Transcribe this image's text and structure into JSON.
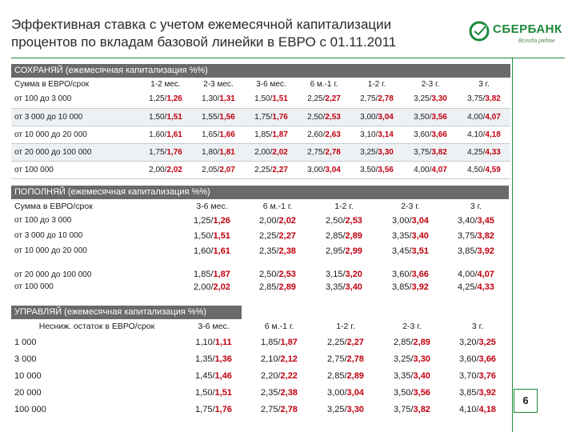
{
  "title": {
    "line1": "Эффективная ставка с учетом ежемесячной капитализации",
    "line2": "процентов по вкладам базовой линейки в ЕВРО с 01.11.2011"
  },
  "logo": {
    "name": "СБЕРБАНК",
    "slogan": "Всегда рядом",
    "accent_color": "#1e8a3c"
  },
  "colors": {
    "section_header_bg": "#6a6a6a",
    "highlight_red": "#c0000f",
    "brand_green": "#1e8a3c"
  },
  "sections": [
    {
      "header": "СОХРАНЯЙ (ежемесячная капитализация %%)",
      "columns": [
        "Сумма в ЕВРО/срок",
        "1-2 мес.",
        "2-3 мес.",
        "3-6 мес.",
        "6 м.-1 г.",
        "1-2 г.",
        "2-3 г.",
        "3 г."
      ],
      "rows": [
        {
          "label": "от 100 до 3 000",
          "cells": [
            [
              "1,25/",
              "1,26"
            ],
            [
              "1,30/",
              "1,31"
            ],
            [
              "1,50/",
              "1,51"
            ],
            [
              "2,25/",
              "2,27"
            ],
            [
              "2,75/",
              "2,78"
            ],
            [
              "3,25/",
              "3,30"
            ],
            [
              "3,75/",
              "3,82"
            ]
          ]
        },
        {
          "label": "от 3 000 до 10 000",
          "cells": [
            [
              "1,50/",
              "1,51"
            ],
            [
              "1,55/",
              "1,56"
            ],
            [
              "1,75/",
              "1,76"
            ],
            [
              "2,50/",
              "2,53"
            ],
            [
              "3,00/",
              "3,04"
            ],
            [
              "3,50/",
              "3,56"
            ],
            [
              "4,00/",
              "4,07"
            ]
          ]
        },
        {
          "label": "от 10 000 до 20 000",
          "cells": [
            [
              "1,60/",
              "1,61"
            ],
            [
              "1,65/",
              "1,66"
            ],
            [
              "1,85/",
              "1,87"
            ],
            [
              "2,60/",
              "2,63"
            ],
            [
              "3,10/",
              "3,14"
            ],
            [
              "3,60/",
              "3,66"
            ],
            [
              "4,10/",
              "4,18"
            ]
          ]
        },
        {
          "label": "от 20 000 до 100 000",
          "cells": [
            [
              "1,75/",
              "1,76"
            ],
            [
              "1,80/",
              "1,81"
            ],
            [
              "2,00/",
              "2,02"
            ],
            [
              "2,75/",
              "2,78"
            ],
            [
              "3,25/",
              "3,30"
            ],
            [
              "3,75/",
              "3,82"
            ],
            [
              "4,25/",
              "4,33"
            ]
          ]
        },
        {
          "label": "от 100 000",
          "cells": [
            [
              "2,00/",
              "2,02"
            ],
            [
              "2,05/",
              "2,07"
            ],
            [
              "2,25/",
              "2,27"
            ],
            [
              "3,00/",
              "3,04"
            ],
            [
              "3,50/",
              "3,56"
            ],
            [
              "4,00/",
              "4,07"
            ],
            [
              "4,50/",
              "4,59"
            ]
          ]
        }
      ]
    },
    {
      "header": "ПОПОЛНЯЙ (ежемесячная капитализация %%)",
      "columns": [
        "Сумма в ЕВРО/срок",
        "3-6 мес.",
        "6 м.-1 г.",
        "1-2 г.",
        "2-3 г.",
        "3 г."
      ],
      "rows": [
        {
          "label": "от 100 до 3 000",
          "cells": [
            [
              "1,25/",
              "1,26"
            ],
            [
              "2,00/",
              "2,02"
            ],
            [
              "2,50/",
              "2,53"
            ],
            [
              "3,00/",
              "3,04"
            ],
            [
              "3,40/",
              "3,45"
            ]
          ]
        },
        {
          "label": "от 3 000 до 10 000",
          "cells": [
            [
              "1,50/",
              "1,51"
            ],
            [
              "2,25/",
              "2,27"
            ],
            [
              "2,85/",
              "2,89"
            ],
            [
              "3,35/",
              "3,40"
            ],
            [
              "3,75/",
              "3,82"
            ]
          ]
        },
        {
          "label": "от 10 000 до 20 000",
          "cells": [
            [
              "1,60/",
              "1,61"
            ],
            [
              "2,35/",
              "2,38"
            ],
            [
              "2,95/",
              "2,99"
            ],
            [
              "3,45/",
              "3,51"
            ],
            [
              "3,85/",
              "3,92"
            ]
          ]
        },
        {
          "label": "от 20 000 до 100 000",
          "cells": [
            [
              "1,85/",
              "1,87"
            ],
            [
              "2,50/",
              "2,53"
            ],
            [
              "3,15/",
              "3,20"
            ],
            [
              "3,60/",
              "3,66"
            ],
            [
              "4,00/",
              "4,07"
            ]
          ]
        },
        {
          "label": "от 100 000",
          "cells": [
            [
              "2,00/",
              "2,02"
            ],
            [
              "2,85/",
              "2,89"
            ],
            [
              "3,35/",
              "3,40"
            ],
            [
              "3,85/",
              "3,92"
            ],
            [
              "4,25/",
              "4,33"
            ]
          ]
        }
      ]
    },
    {
      "header": "УПРАВЛЯЙ (ежемесячная капитализация %%)",
      "columns": [
        "Несниж. остаток в ЕВРО/срок",
        "3-6 мес.",
        "6 м.-1 г.",
        "1-2 г.",
        "2-3 г.",
        "3 г."
      ],
      "rows": [
        {
          "label": "1 000",
          "cells": [
            [
              "1,10/",
              "1,11"
            ],
            [
              "1,85/",
              "1,87"
            ],
            [
              "2,25/",
              "2,27"
            ],
            [
              "2,85/",
              "2,89"
            ],
            [
              "3,20/",
              "3,25"
            ]
          ]
        },
        {
          "label": "3 000",
          "cells": [
            [
              "1,35/",
              "1,36"
            ],
            [
              "2,10/",
              "2,12"
            ],
            [
              "2,75/",
              "2,78"
            ],
            [
              "3,25/",
              "3,30"
            ],
            [
              "3,60/",
              "3,66"
            ]
          ]
        },
        {
          "label": "10 000",
          "cells": [
            [
              "1,45/",
              "1,46"
            ],
            [
              "2,20/",
              "2,22"
            ],
            [
              "2,85/",
              "2,89"
            ],
            [
              "3,35/",
              "3,40"
            ],
            [
              "3,70/",
              "3,76"
            ]
          ]
        },
        {
          "label": "20 000",
          "cells": [
            [
              "1,50/",
              "1,51"
            ],
            [
              "2,35/",
              "2,38"
            ],
            [
              "3,00/",
              "3,04"
            ],
            [
              "3,50/",
              "3,56"
            ],
            [
              "3,85/",
              "3,92"
            ]
          ]
        },
        {
          "label": "100 000",
          "cells": [
            [
              "1,75/",
              "1,76"
            ],
            [
              "2,75/",
              "2,78"
            ],
            [
              "3,25/",
              "3,30"
            ],
            [
              "3,75/",
              "3,82"
            ],
            [
              "4,10/",
              "4,18"
            ]
          ]
        }
      ]
    }
  ],
  "page_number": "6"
}
